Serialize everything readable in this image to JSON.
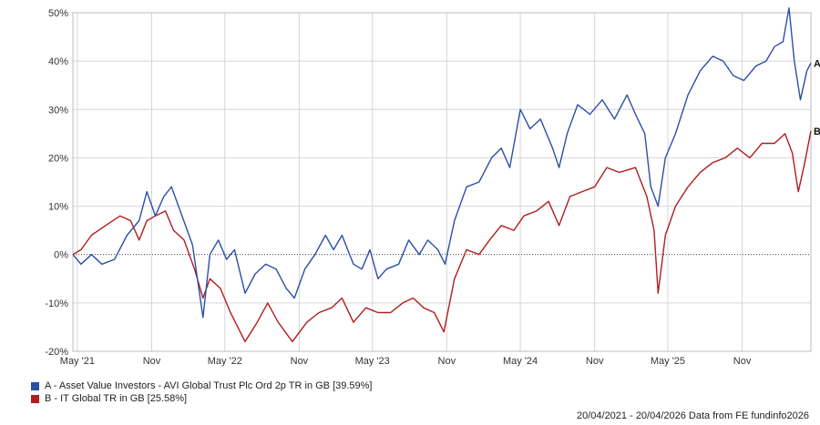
{
  "chart_data": {
    "type": "line",
    "title": "",
    "xlabel": "",
    "ylabel": "",
    "x_range": [
      "2021-04-20",
      "2026-04-20"
    ],
    "ylim": [
      -20,
      50
    ],
    "y_unit": "%",
    "grid": true,
    "zero_line": "dotted",
    "x_ticks": [
      {
        "date": "2021-05-01",
        "label": "May '21"
      },
      {
        "date": "2021-11-01",
        "label": "Nov"
      },
      {
        "date": "2022-05-01",
        "label": "May '22"
      },
      {
        "date": "2022-11-01",
        "label": "Nov"
      },
      {
        "date": "2023-05-01",
        "label": "May '23"
      },
      {
        "date": "2023-11-01",
        "label": "Nov"
      },
      {
        "date": "2024-05-01",
        "label": "May '24"
      },
      {
        "date": "2024-11-01",
        "label": "Nov"
      },
      {
        "date": "2025-05-01",
        "label": "May '25"
      },
      {
        "date": "2025-11-01",
        "label": "Nov"
      }
    ],
    "y_ticks": [
      {
        "value": 50,
        "label": "50%"
      },
      {
        "value": 40,
        "label": "40%"
      },
      {
        "value": 30,
        "label": "30%"
      },
      {
        "value": 20,
        "label": "20%"
      },
      {
        "value": 10,
        "label": "10%"
      },
      {
        "value": 0,
        "label": "0%"
      },
      {
        "value": -10,
        "label": "-10%"
      },
      {
        "value": -20,
        "label": "-20%"
      }
    ],
    "series": [
      {
        "name": "A - Asset Value Investors - AVI Global Trust Plc Ord 2p TR in GB [39.59%]",
        "end_label": "A",
        "color": "#2b4fa8",
        "points": [
          [
            "2021-04-20",
            0
          ],
          [
            "2021-05-10",
            -2
          ],
          [
            "2021-06-05",
            0
          ],
          [
            "2021-07-01",
            -2
          ],
          [
            "2021-08-01",
            -1
          ],
          [
            "2021-09-01",
            4
          ],
          [
            "2021-10-01",
            7
          ],
          [
            "2021-10-20",
            13
          ],
          [
            "2021-11-10",
            8
          ],
          [
            "2021-12-01",
            12
          ],
          [
            "2021-12-20",
            14
          ],
          [
            "2022-01-15",
            8
          ],
          [
            "2022-02-10",
            2
          ],
          [
            "2022-03-08",
            -13
          ],
          [
            "2022-03-25",
            0
          ],
          [
            "2022-04-15",
            3
          ],
          [
            "2022-05-05",
            -1
          ],
          [
            "2022-05-25",
            1
          ],
          [
            "2022-06-20",
            -8
          ],
          [
            "2022-07-15",
            -4
          ],
          [
            "2022-08-10",
            -2
          ],
          [
            "2022-09-05",
            -3
          ],
          [
            "2022-09-30",
            -7
          ],
          [
            "2022-10-20",
            -9
          ],
          [
            "2022-11-15",
            -3
          ],
          [
            "2022-12-10",
            0
          ],
          [
            "2023-01-05",
            4
          ],
          [
            "2023-01-25",
            1
          ],
          [
            "2023-02-15",
            4
          ],
          [
            "2023-03-15",
            -2
          ],
          [
            "2023-04-05",
            -3
          ],
          [
            "2023-04-25",
            1
          ],
          [
            "2023-05-15",
            -5
          ],
          [
            "2023-06-05",
            -3
          ],
          [
            "2023-07-05",
            -2
          ],
          [
            "2023-07-30",
            3
          ],
          [
            "2023-08-25",
            0
          ],
          [
            "2023-09-15",
            3
          ],
          [
            "2023-10-10",
            1
          ],
          [
            "2023-10-28",
            -2
          ],
          [
            "2023-11-20",
            7
          ],
          [
            "2023-12-20",
            14
          ],
          [
            "2024-01-20",
            15
          ],
          [
            "2024-02-20",
            20
          ],
          [
            "2024-03-15",
            22
          ],
          [
            "2024-04-05",
            18
          ],
          [
            "2024-05-01",
            30
          ],
          [
            "2024-05-25",
            26
          ],
          [
            "2024-06-20",
            28
          ],
          [
            "2024-07-20",
            22
          ],
          [
            "2024-08-05",
            18
          ],
          [
            "2024-08-25",
            25
          ],
          [
            "2024-09-20",
            31
          ],
          [
            "2024-10-20",
            29
          ],
          [
            "2024-11-20",
            32
          ],
          [
            "2024-12-20",
            28
          ],
          [
            "2025-01-20",
            33
          ],
          [
            "2025-02-10",
            29
          ],
          [
            "2025-03-05",
            25
          ],
          [
            "2025-03-20",
            14
          ],
          [
            "2025-04-07",
            10
          ],
          [
            "2025-04-25",
            20
          ],
          [
            "2025-05-20",
            25
          ],
          [
            "2025-06-20",
            33
          ],
          [
            "2025-07-20",
            38
          ],
          [
            "2025-08-20",
            41
          ],
          [
            "2025-09-15",
            40
          ],
          [
            "2025-10-10",
            37
          ],
          [
            "2025-11-05",
            36
          ],
          [
            "2025-12-05",
            39
          ],
          [
            "2025-12-30",
            40
          ],
          [
            "2026-01-20",
            43
          ],
          [
            "2026-02-10",
            44
          ],
          [
            "2026-02-25",
            51
          ],
          [
            "2026-03-10",
            40
          ],
          [
            "2026-03-25",
            32
          ],
          [
            "2026-04-10",
            38
          ],
          [
            "2026-04-20",
            39.59
          ]
        ]
      },
      {
        "name": "B - IT Global TR in GB [25.58%]",
        "end_label": "B",
        "color": "#b01e1e",
        "points": [
          [
            "2021-04-20",
            0
          ],
          [
            "2021-05-10",
            1
          ],
          [
            "2021-06-05",
            4
          ],
          [
            "2021-07-10",
            6
          ],
          [
            "2021-08-15",
            8
          ],
          [
            "2021-09-10",
            7
          ],
          [
            "2021-10-01",
            3
          ],
          [
            "2021-10-20",
            7
          ],
          [
            "2021-11-10",
            8
          ],
          [
            "2021-12-05",
            9
          ],
          [
            "2021-12-25",
            5
          ],
          [
            "2022-01-20",
            3
          ],
          [
            "2022-02-15",
            -3
          ],
          [
            "2022-03-08",
            -9
          ],
          [
            "2022-03-25",
            -5
          ],
          [
            "2022-04-20",
            -7
          ],
          [
            "2022-05-15",
            -12
          ],
          [
            "2022-06-20",
            -18
          ],
          [
            "2022-07-20",
            -14
          ],
          [
            "2022-08-15",
            -10
          ],
          [
            "2022-09-10",
            -14
          ],
          [
            "2022-10-15",
            -18
          ],
          [
            "2022-11-20",
            -14
          ],
          [
            "2022-12-20",
            -12
          ],
          [
            "2023-01-20",
            -11
          ],
          [
            "2023-02-15",
            -9
          ],
          [
            "2023-03-15",
            -14
          ],
          [
            "2023-04-15",
            -11
          ],
          [
            "2023-05-15",
            -12
          ],
          [
            "2023-06-15",
            -12
          ],
          [
            "2023-07-15",
            -10
          ],
          [
            "2023-08-10",
            -9
          ],
          [
            "2023-09-05",
            -11
          ],
          [
            "2023-10-01",
            -12
          ],
          [
            "2023-10-25",
            -16
          ],
          [
            "2023-11-20",
            -5
          ],
          [
            "2023-12-20",
            1
          ],
          [
            "2024-01-20",
            0
          ],
          [
            "2024-02-15",
            3
          ],
          [
            "2024-03-15",
            6
          ],
          [
            "2024-04-15",
            5
          ],
          [
            "2024-05-10",
            8
          ],
          [
            "2024-06-10",
            9
          ],
          [
            "2024-07-10",
            11
          ],
          [
            "2024-08-05",
            6
          ],
          [
            "2024-09-01",
            12
          ],
          [
            "2024-10-01",
            13
          ],
          [
            "2024-11-01",
            14
          ],
          [
            "2024-12-01",
            18
          ],
          [
            "2025-01-01",
            17
          ],
          [
            "2025-02-10",
            18
          ],
          [
            "2025-03-10",
            12
          ],
          [
            "2025-03-28",
            5
          ],
          [
            "2025-04-07",
            -8
          ],
          [
            "2025-04-25",
            4
          ],
          [
            "2025-05-20",
            10
          ],
          [
            "2025-06-20",
            14
          ],
          [
            "2025-07-20",
            17
          ],
          [
            "2025-08-20",
            19
          ],
          [
            "2025-09-20",
            20
          ],
          [
            "2025-10-20",
            22
          ],
          [
            "2025-11-20",
            20
          ],
          [
            "2025-12-20",
            23
          ],
          [
            "2026-01-20",
            23
          ],
          [
            "2026-02-15",
            25
          ],
          [
            "2026-03-05",
            21
          ],
          [
            "2026-03-20",
            13
          ],
          [
            "2026-04-05",
            19
          ],
          [
            "2026-04-20",
            25.58
          ]
        ]
      }
    ]
  },
  "legend": [
    {
      "label": "A - Asset Value Investors - AVI Global Trust Plc Ord 2p TR in GB [39.59%]",
      "color": "#2b4fa8"
    },
    {
      "label": "B - IT Global TR in GB [25.58%]",
      "color": "#b01e1e"
    }
  ],
  "footer": "20/04/2021 - 20/04/2026 Data from FE fundinfo2026"
}
